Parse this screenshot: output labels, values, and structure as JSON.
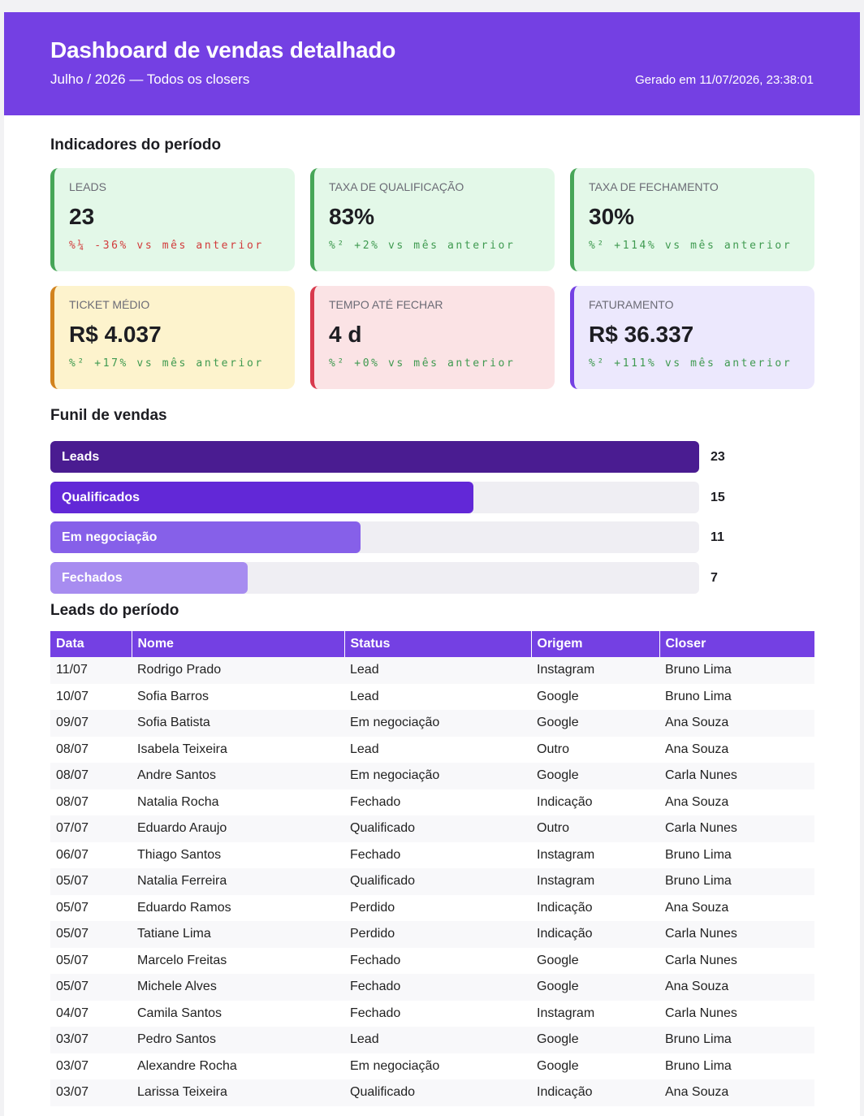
{
  "header": {
    "title": "Dashboard de vendas detalhado",
    "subtitle": "Julho / 2026 — Todos os closers",
    "generated": "Gerado em 11/07/2026, 23:38:01"
  },
  "indicators": {
    "title": "Indicadores do período",
    "cards": [
      {
        "label": "LEADS",
        "value": "23",
        "change": "%¼ -36% vs mês anterior",
        "trend": "down",
        "tone": "green"
      },
      {
        "label": "TAXA DE QUALIFICAÇÃO",
        "value": "83%",
        "change": "%² +2% vs mês anterior",
        "trend": "up",
        "tone": "green"
      },
      {
        "label": "TAXA DE FECHAMENTO",
        "value": "30%",
        "change": "%² +114% vs mês anterior",
        "trend": "up",
        "tone": "green"
      },
      {
        "label": "TICKET MÉDIO",
        "value": "R$ 4.037",
        "change": "%² +17% vs mês anterior",
        "trend": "up",
        "tone": "yellow"
      },
      {
        "label": "TEMPO ATÉ FECHAR",
        "value": "4 d",
        "change": "%² +0% vs mês anterior",
        "trend": "up",
        "tone": "red"
      },
      {
        "label": "FATURAMENTO",
        "value": "R$ 36.337",
        "change": "%² +111% vs mês anterior",
        "trend": "up",
        "tone": "purple"
      }
    ]
  },
  "funnel": {
    "title": "Funil de vendas",
    "max": 23,
    "stages": [
      {
        "label": "Leads",
        "count": "23",
        "value": 23,
        "color": "#4a1c91"
      },
      {
        "label": "Qualificados",
        "count": "15",
        "value": 15,
        "color": "#6228d7"
      },
      {
        "label": "Em negociação",
        "count": "11",
        "value": 11,
        "color": "#8660e9"
      },
      {
        "label": "Fechados",
        "count": "7",
        "value": 7,
        "color": "#a78cf0"
      }
    ]
  },
  "leads": {
    "title": "Leads do período",
    "columns": [
      "Data",
      "Nome",
      "Status",
      "Origem",
      "Closer"
    ],
    "rows": [
      [
        "11/07",
        "Rodrigo Prado",
        "Lead",
        "Instagram",
        "Bruno Lima"
      ],
      [
        "10/07",
        "Sofia Barros",
        "Lead",
        "Google",
        "Bruno Lima"
      ],
      [
        "09/07",
        "Sofia Batista",
        "Em negociação",
        "Google",
        "Ana Souza"
      ],
      [
        "08/07",
        "Isabela Teixeira",
        "Lead",
        "Outro",
        "Ana Souza"
      ],
      [
        "08/07",
        "Andre Santos",
        "Em negociação",
        "Google",
        "Carla Nunes"
      ],
      [
        "08/07",
        "Natalia Rocha",
        "Fechado",
        "Indicação",
        "Ana Souza"
      ],
      [
        "07/07",
        "Eduardo Araujo",
        "Qualificado",
        "Outro",
        "Carla Nunes"
      ],
      [
        "06/07",
        "Thiago Santos",
        "Fechado",
        "Instagram",
        "Bruno Lima"
      ],
      [
        "05/07",
        "Natalia Ferreira",
        "Qualificado",
        "Instagram",
        "Bruno Lima"
      ],
      [
        "05/07",
        "Eduardo Ramos",
        "Perdido",
        "Indicação",
        "Ana Souza"
      ],
      [
        "05/07",
        "Tatiane Lima",
        "Perdido",
        "Indicação",
        "Carla Nunes"
      ],
      [
        "05/07",
        "Marcelo Freitas",
        "Fechado",
        "Google",
        "Carla Nunes"
      ],
      [
        "05/07",
        "Michele Alves",
        "Fechado",
        "Google",
        "Ana Souza"
      ],
      [
        "04/07",
        "Camila Santos",
        "Fechado",
        "Instagram",
        "Carla Nunes"
      ],
      [
        "03/07",
        "Pedro Santos",
        "Lead",
        "Google",
        "Bruno Lima"
      ],
      [
        "03/07",
        "Alexandre Rocha",
        "Em negociação",
        "Google",
        "Bruno Lima"
      ],
      [
        "03/07",
        "Larissa Teixeira",
        "Qualificado",
        "Indicação",
        "Ana Souza"
      ]
    ]
  }
}
